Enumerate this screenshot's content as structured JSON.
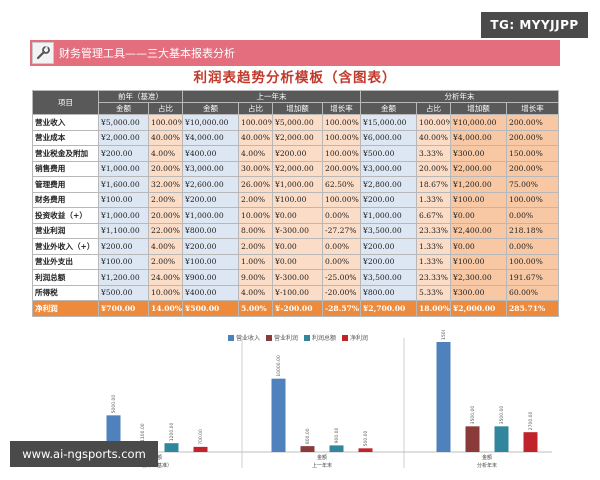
{
  "watermarks": {
    "top": "TG: MYYJJPP",
    "bottom": "www.ai-ngsports.com"
  },
  "app": {
    "title": "财务管理工具——三大基本报表分析",
    "icon": "wrench-icon"
  },
  "document": {
    "title": "利润表趋势分析模板（含图表）"
  },
  "table": {
    "row_header": "项目",
    "groups": [
      "前年（基准）",
      "上一年末",
      "分析年末"
    ],
    "subheaders": {
      "g1": [
        "金额",
        "占比"
      ],
      "g2": [
        "金额",
        "占比",
        "增加额",
        "增长率"
      ],
      "g3": [
        "金额",
        "占比",
        "增加额",
        "增长率"
      ]
    },
    "rows": [
      {
        "label": "营业收入",
        "v": [
          "¥5,000.00",
          "100.00%",
          "¥10,000.00",
          "100.00%",
          "¥5,000.00",
          "100.00%",
          "¥15,000.00",
          "100.00%",
          "¥10,000.00",
          "200.00%"
        ]
      },
      {
        "label": "营业成本",
        "v": [
          "¥2,000.00",
          "40.00%",
          "¥4,000.00",
          "40.00%",
          "¥2,000.00",
          "100.00%",
          "¥6,000.00",
          "40.00%",
          "¥4,000.00",
          "200.00%"
        ]
      },
      {
        "label": "营业税金及附加",
        "v": [
          "¥200.00",
          "4.00%",
          "¥400.00",
          "4.00%",
          "¥200.00",
          "100.00%",
          "¥500.00",
          "3.33%",
          "¥300.00",
          "150.00%"
        ]
      },
      {
        "label": "销售费用",
        "v": [
          "¥1,000.00",
          "20.00%",
          "¥3,000.00",
          "30.00%",
          "¥2,000.00",
          "200.00%",
          "¥3,000.00",
          "20.00%",
          "¥2,000.00",
          "200.00%"
        ]
      },
      {
        "label": "管理费用",
        "v": [
          "¥1,600.00",
          "32.00%",
          "¥2,600.00",
          "26.00%",
          "¥1,000.00",
          "62.50%",
          "¥2,800.00",
          "18.67%",
          "¥1,200.00",
          "75.00%"
        ]
      },
      {
        "label": "财务费用",
        "v": [
          "¥100.00",
          "2.00%",
          "¥200.00",
          "2.00%",
          "¥100.00",
          "100.00%",
          "¥200.00",
          "1.33%",
          "¥100.00",
          "100.00%"
        ]
      },
      {
        "label": "投资收益（+）",
        "v": [
          "¥1,000.00",
          "20.00%",
          "¥1,000.00",
          "10.00%",
          "¥0.00",
          "0.00%",
          "¥1,000.00",
          "6.67%",
          "¥0.00",
          "0.00%"
        ]
      },
      {
        "label": "营业利润",
        "v": [
          "¥1,100.00",
          "22.00%",
          "¥800.00",
          "8.00%",
          "¥-300.00",
          "-27.27%",
          "¥3,500.00",
          "23.33%",
          "¥2,400.00",
          "218.18%"
        ]
      },
      {
        "label": "营业外收入（+）",
        "v": [
          "¥200.00",
          "4.00%",
          "¥200.00",
          "2.00%",
          "¥0.00",
          "0.00%",
          "¥200.00",
          "1.33%",
          "¥0.00",
          "0.00%"
        ]
      },
      {
        "label": "营业外支出",
        "v": [
          "¥100.00",
          "2.00%",
          "¥100.00",
          "1.00%",
          "¥0.00",
          "0.00%",
          "¥200.00",
          "1.33%",
          "¥100.00",
          "100.00%"
        ]
      },
      {
        "label": "利润总额",
        "v": [
          "¥1,200.00",
          "24.00%",
          "¥900.00",
          "9.00%",
          "¥-300.00",
          "-25.00%",
          "¥3,500.00",
          "23.33%",
          "¥2,300.00",
          "191.67%"
        ]
      },
      {
        "label": "所得税",
        "v": [
          "¥500.00",
          "10.00%",
          "¥400.00",
          "4.00%",
          "¥-100.00",
          "-20.00%",
          "¥800.00",
          "5.33%",
          "¥300.00",
          "60.00%"
        ]
      },
      {
        "label": "净利润",
        "total": true,
        "v": [
          "¥700.00",
          "14.00%",
          "¥500.00",
          "5.00%",
          "¥-200.00",
          "-28.57%",
          "¥2,700.00",
          "18.00%",
          "¥2,000.00",
          "285.71%"
        ]
      }
    ]
  },
  "chart_data": {
    "type": "bar",
    "title": "",
    "categories": [
      "前年（基准）",
      "上一年末",
      "分析年末"
    ],
    "axis_group_label": "金额",
    "series": [
      {
        "name": "营业收入",
        "color": "#4f81bd",
        "values": [
          5000,
          10000,
          15000
        ]
      },
      {
        "name": "营业利润",
        "color": "#8b3a3a",
        "values": [
          1100,
          800,
          3500
        ]
      },
      {
        "name": "利润总额",
        "color": "#31859c",
        "values": [
          1200,
          900,
          3500
        ]
      },
      {
        "name": "净利润",
        "color": "#c0232a",
        "values": [
          700,
          500,
          2700
        ]
      }
    ],
    "ylim": [
      0,
      15000
    ],
    "grid": false,
    "legend": "top-center"
  }
}
